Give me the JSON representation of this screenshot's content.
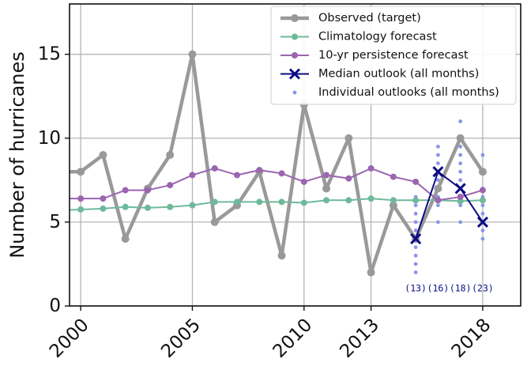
{
  "chart_data": {
    "type": "line",
    "ylabel": "Number of hurricanes",
    "xlim": [
      1999.5,
      2019.7
    ],
    "ylim": [
      0,
      18
    ],
    "xticks": [
      2000,
      2005,
      2010,
      2013,
      2018
    ],
    "xtick_labels": [
      "2000",
      "2005",
      "2010",
      "2013",
      "2018"
    ],
    "yticks": [
      0,
      5,
      10,
      15
    ],
    "ytick_labels": [
      "0",
      "5",
      "10",
      "15"
    ],
    "grid": true,
    "legend_position": "top-right",
    "series": [
      {
        "name": "Observed (target)",
        "color": "#999999",
        "marker": "circle",
        "x": [
          1999,
          2000,
          2001,
          2002,
          2003,
          2004,
          2005,
          2006,
          2007,
          2008,
          2009,
          2010,
          2011,
          2012,
          2013,
          2014,
          2015,
          2016,
          2017,
          2018
        ],
        "y": [
          8,
          8,
          9,
          4,
          7,
          9,
          15,
          5,
          6,
          8,
          3,
          12,
          7,
          10,
          2,
          6,
          4,
          7,
          10,
          8
        ]
      },
      {
        "name": "Climatology forecast",
        "color": "#6fb99b",
        "marker": "circle",
        "x": [
          1999,
          2000,
          2001,
          2002,
          2003,
          2004,
          2005,
          2006,
          2007,
          2008,
          2009,
          2010,
          2011,
          2012,
          2013,
          2014,
          2015,
          2016,
          2017,
          2018
        ],
        "y": [
          5.7,
          5.75,
          5.8,
          5.9,
          5.85,
          5.9,
          6.0,
          6.2,
          6.2,
          6.2,
          6.2,
          6.15,
          6.3,
          6.3,
          6.4,
          6.3,
          6.3,
          6.3,
          6.25,
          6.3
        ]
      },
      {
        "name": "10-yr persistence forecast",
        "color": "#9b65b0",
        "marker": "circle",
        "x": [
          1999,
          2000,
          2001,
          2002,
          2003,
          2004,
          2005,
          2006,
          2007,
          2008,
          2009,
          2010,
          2011,
          2012,
          2013,
          2014,
          2015,
          2016,
          2017,
          2018
        ],
        "y": [
          6.4,
          6.4,
          6.4,
          6.9,
          6.9,
          7.2,
          7.8,
          8.2,
          7.8,
          8.1,
          7.9,
          7.4,
          7.8,
          7.6,
          8.2,
          7.7,
          7.4,
          6.3,
          6.5,
          6.9
        ]
      },
      {
        "name": "Median outlook (all months)",
        "color": "#0b0b85",
        "marker": "x",
        "x": [
          2015,
          2016,
          2017,
          2018
        ],
        "y": [
          4,
          8,
          7,
          5
        ]
      },
      {
        "name": "Individual outlooks (all months)",
        "color": "#8a94ea",
        "marker": "dot",
        "points": [
          {
            "x": 2015,
            "y": 2
          },
          {
            "x": 2015,
            "y": 2.5
          },
          {
            "x": 2015,
            "y": 3
          },
          {
            "x": 2015,
            "y": 3.5
          },
          {
            "x": 2015,
            "y": 4
          },
          {
            "x": 2015,
            "y": 4.5
          },
          {
            "x": 2015,
            "y": 5
          },
          {
            "x": 2015,
            "y": 5.5
          },
          {
            "x": 2015,
            "y": 6
          },
          {
            "x": 2015,
            "y": 6.5
          },
          {
            "x": 2016,
            "y": 5
          },
          {
            "x": 2016,
            "y": 6
          },
          {
            "x": 2016,
            "y": 6.5
          },
          {
            "x": 2016,
            "y": 7
          },
          {
            "x": 2016,
            "y": 7.5
          },
          {
            "x": 2016,
            "y": 8
          },
          {
            "x": 2016,
            "y": 8.5
          },
          {
            "x": 2016,
            "y": 9
          },
          {
            "x": 2016,
            "y": 9.5
          },
          {
            "x": 2017,
            "y": 5
          },
          {
            "x": 2017,
            "y": 6
          },
          {
            "x": 2017,
            "y": 6.5
          },
          {
            "x": 2017,
            "y": 7
          },
          {
            "x": 2017,
            "y": 7.5
          },
          {
            "x": 2017,
            "y": 8
          },
          {
            "x": 2017,
            "y": 8.5
          },
          {
            "x": 2017,
            "y": 9
          },
          {
            "x": 2017,
            "y": 9.5
          },
          {
            "x": 2017,
            "y": 10
          },
          {
            "x": 2017,
            "y": 11
          },
          {
            "x": 2018,
            "y": 4
          },
          {
            "x": 2018,
            "y": 4.5
          },
          {
            "x": 2018,
            "y": 5
          },
          {
            "x": 2018,
            "y": 5.5
          },
          {
            "x": 2018,
            "y": 6
          },
          {
            "x": 2018,
            "y": 6.5
          },
          {
            "x": 2018,
            "y": 7
          },
          {
            "x": 2018,
            "y": 8
          },
          {
            "x": 2018,
            "y": 9
          }
        ]
      }
    ],
    "annotations": [
      {
        "x": 2015,
        "text": "(13)"
      },
      {
        "x": 2016,
        "text": "(16)"
      },
      {
        "x": 2017,
        "text": "(18)"
      },
      {
        "x": 2018,
        "text": "(23)"
      }
    ],
    "annotation_color": "#0b0b85"
  }
}
